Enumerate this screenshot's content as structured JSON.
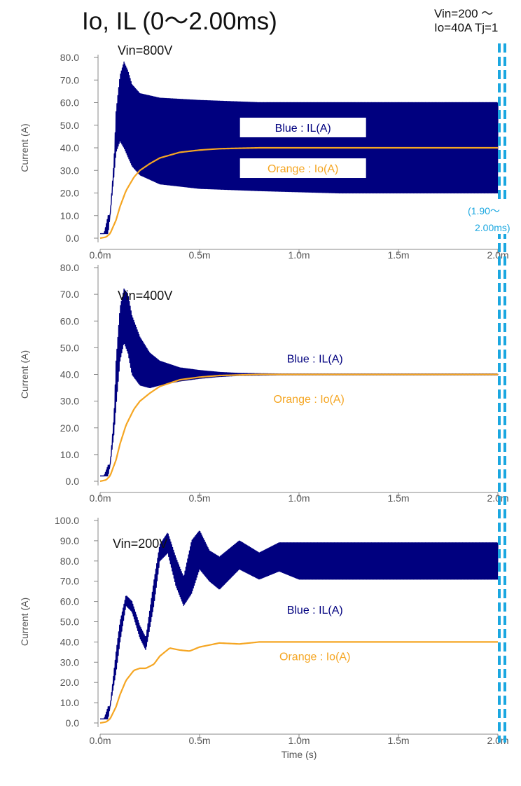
{
  "page": {
    "title": "Io, IL (0～2.00ms)",
    "note_line1": "Vin=200 ～",
    "note_line2": "Io=40A Tj=1",
    "window_label_line1": "(1.90～",
    "window_label_line2": "2.00ms)"
  },
  "colors": {
    "il": "#00007f",
    "io": "#f5a623",
    "window": "#1aa7e0",
    "tick_text": "#555555",
    "axis": "#888888"
  },
  "chart_data": [
    {
      "type": "line",
      "panel_label": "Vin=800V",
      "ylabel": "Current (A)",
      "xlabel": "",
      "xlim": [
        0,
        0.002
      ],
      "ylim": [
        0,
        80
      ],
      "yticks": [
        "0.0",
        "10.0",
        "20.0",
        "30.0",
        "40.0",
        "50.0",
        "60.0",
        "70.0",
        "80.0"
      ],
      "ytick_values": [
        0,
        10,
        20,
        30,
        40,
        50,
        60,
        70,
        80
      ],
      "xticks": [
        "0.0m",
        "0.5m",
        "1.0m",
        "1.5m",
        "2.0m"
      ],
      "xtick_values": [
        0,
        0.0005,
        0.001,
        0.0015,
        0.002
      ],
      "grid": false,
      "annotations": [
        {
          "text": "Blue : IL(A)",
          "color": "il",
          "x": 0.00102,
          "y": 49
        },
        {
          "text": "Orange : Io(A)",
          "color": "io",
          "x": 0.00102,
          "y": 31
        }
      ],
      "series": [
        {
          "name": "IL",
          "color": "il",
          "envelope": {
            "x": [
              0,
              2e-05,
              4e-05,
              5e-05,
              7e-05,
              8e-05,
              0.0001,
              0.00012,
              0.00014,
              0.00016,
              0.0002,
              0.0003,
              0.0005,
              0.0008,
              0.0012,
              0.002
            ],
            "upper": [
              2,
              2,
              10,
              10,
              35,
              56,
              72,
              78,
              74,
              68,
              64,
              62,
              61,
              60,
              60,
              60
            ],
            "lower": [
              2,
              2,
              2,
              10,
              28,
              38,
              43,
              40,
              36,
              32,
              28,
              24,
              22,
              21,
              20,
              20
            ]
          }
        },
        {
          "name": "Io",
          "color": "io",
          "points": {
            "x": [
              0,
              3e-05,
              5e-05,
              8e-05,
              0.0001,
              0.00013,
              0.00017,
              0.0002,
              0.00025,
              0.0003,
              0.0004,
              0.0005,
              0.0006,
              0.0008,
              0.001,
              0.002
            ],
            "y": [
              0,
              0.5,
              2,
              8,
              14,
              21,
              27,
              30,
              33,
              35.5,
              38,
              39,
              39.6,
              40,
              40,
              40
            ]
          }
        }
      ]
    },
    {
      "type": "line",
      "panel_label": "Vin=400V",
      "ylabel": "Current (A)",
      "xlabel": "",
      "xlim": [
        0,
        0.002
      ],
      "ylim": [
        0,
        80
      ],
      "yticks": [
        "0.0",
        "10.0",
        "20.0",
        "30.0",
        "40.0",
        "50.0",
        "60.0",
        "70.0",
        "80.0"
      ],
      "ytick_values": [
        0,
        10,
        20,
        30,
        40,
        50,
        60,
        70,
        80
      ],
      "xticks": [
        "0.0m",
        "0.5m",
        "1.0m",
        "1.5m",
        "2.0m"
      ],
      "xtick_values": [
        0,
        0.0005,
        0.001,
        0.0015,
        0.002
      ],
      "grid": false,
      "annotations": [
        {
          "text": "Blue : IL(A)",
          "color": "il",
          "x": 0.00108,
          "y": 46
        },
        {
          "text": "Orange : Io(A)",
          "color": "io",
          "x": 0.00105,
          "y": 31
        }
      ],
      "series": [
        {
          "name": "IL",
          "color": "il",
          "envelope": {
            "x": [
              0,
              2e-05,
              4e-05,
              5e-05,
              7e-05,
              8e-05,
              0.0001,
              0.00012,
              0.00014,
              0.00016,
              0.0002,
              0.00025,
              0.0003,
              0.0004,
              0.0005,
              0.0006,
              0.0007,
              0.0009,
              0.002
            ],
            "upper": [
              2,
              2,
              6,
              6,
              25,
              45,
              65,
              72,
              70,
              62,
              54,
              48,
              45,
              42.5,
              41.5,
              40.8,
              40.4,
              40.2,
              40.2
            ],
            "lower": [
              2,
              2,
              2,
              6,
              18,
              28,
              45,
              52,
              48,
              40,
              36,
              35,
              36,
              37.5,
              38.5,
              39.2,
              39.6,
              39.8,
              39.8
            ]
          }
        },
        {
          "name": "Io",
          "color": "io",
          "points": {
            "x": [
              0,
              3e-05,
              5e-05,
              8e-05,
              0.0001,
              0.00013,
              0.00017,
              0.0002,
              0.00025,
              0.0003,
              0.0004,
              0.0005,
              0.0006,
              0.0008,
              0.001,
              0.002
            ],
            "y": [
              0,
              0.5,
              2,
              8,
              14,
              21,
              27,
              30,
              33,
              35.5,
              38,
              39,
              39.6,
              40,
              40,
              40
            ]
          }
        }
      ]
    },
    {
      "type": "line",
      "panel_label": "Vin=200V",
      "ylabel": "Current (A)",
      "xlabel": "Time (s)",
      "xlim": [
        0,
        0.002
      ],
      "ylim": [
        0,
        100
      ],
      "yticks": [
        "0.0",
        "10.0",
        "20.0",
        "30.0",
        "40.0",
        "50.0",
        "60.0",
        "70.0",
        "80.0",
        "90.0",
        "100.0"
      ],
      "ytick_values": [
        0,
        10,
        20,
        30,
        40,
        50,
        60,
        70,
        80,
        90,
        100
      ],
      "xticks": [
        "0.0m",
        "0.5m",
        "1.0m",
        "1.5m",
        "2.0m"
      ],
      "xtick_values": [
        0,
        0.0005,
        0.001,
        0.0015,
        0.002
      ],
      "grid": false,
      "annotations": [
        {
          "text": "Blue : IL(A)",
          "color": "il",
          "x": 0.00108,
          "y": 56
        },
        {
          "text": "Orange : Io(A)",
          "color": "io",
          "x": 0.00108,
          "y": 33
        }
      ],
      "series": [
        {
          "name": "IL",
          "color": "il",
          "envelope": {
            "x": [
              0,
              2e-05,
              4e-05,
              5e-05,
              8e-05,
              0.0001,
              0.00013,
              0.00016,
              0.0002,
              0.00023,
              0.00027,
              0.0003,
              0.00034,
              0.00038,
              0.00042,
              0.00046,
              0.0005,
              0.00055,
              0.0006,
              0.0007,
              0.0008,
              0.0009,
              0.001,
              0.0012,
              0.002
            ],
            "upper": [
              2,
              2,
              8,
              8,
              35,
              50,
              63,
              60,
              48,
              42,
              70,
              88,
              94,
              82,
              72,
              90,
              95,
              85,
              82,
              90,
              84,
              89,
              89,
              89,
              89
            ],
            "lower": [
              2,
              2,
              2,
              8,
              25,
              40,
              58,
              55,
              42,
              36,
              58,
              80,
              84,
              68,
              58,
              64,
              76,
              70,
              66,
              76,
              71,
              75,
              71,
              71,
              71
            ]
          }
        },
        {
          "name": "Io",
          "color": "io",
          "points": {
            "x": [
              0,
              3e-05,
              5e-05,
              8e-05,
              0.0001,
              0.00013,
              0.00017,
              0.0002,
              0.00023,
              0.00027,
              0.0003,
              0.00035,
              0.0004,
              0.00045,
              0.0005,
              0.0006,
              0.0007,
              0.0008,
              0.001,
              0.002
            ],
            "y": [
              0,
              0.5,
              2,
              8,
              14,
              21,
              26,
              27,
              27,
              29,
              33,
              37,
              36,
              35.5,
              37.5,
              39.5,
              39,
              40,
              40,
              40
            ]
          }
        }
      ]
    }
  ]
}
